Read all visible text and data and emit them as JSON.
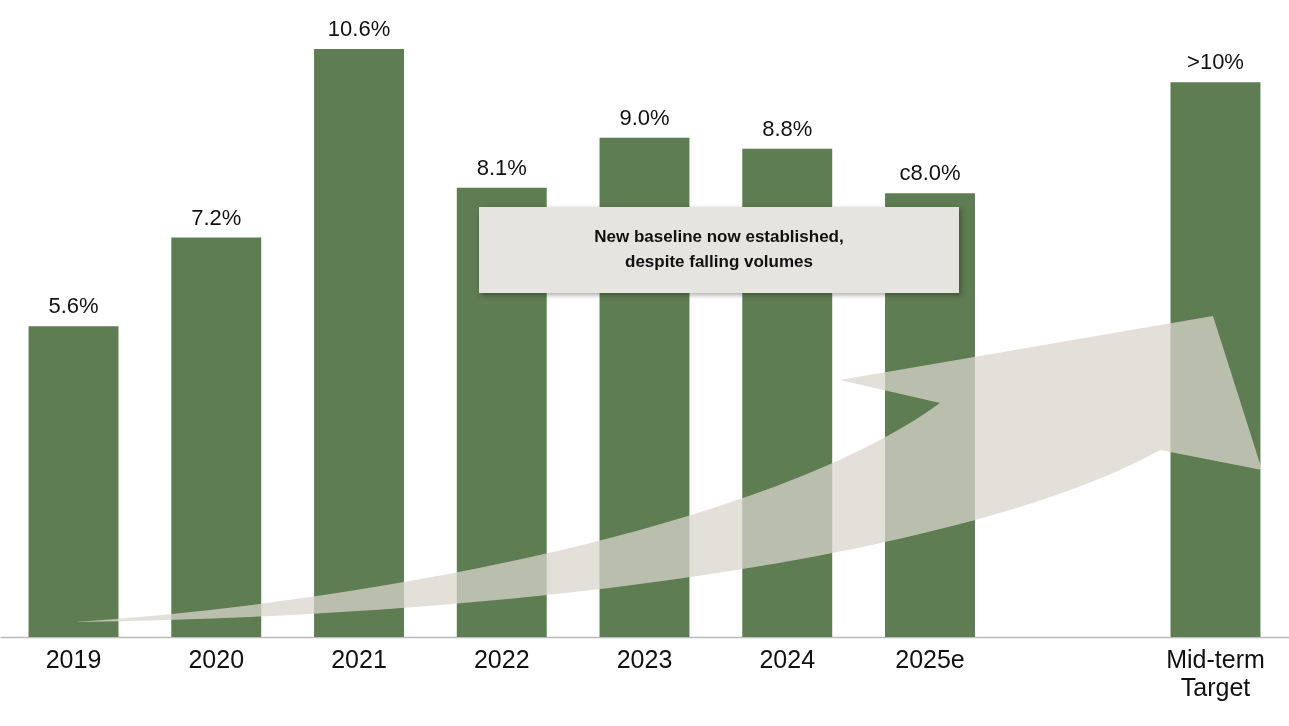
{
  "chart_data": {
    "type": "bar",
    "categories": [
      "2019",
      "2020",
      "2021",
      "2022",
      "2023",
      "2024",
      "2025e",
      null,
      "Mid-term Target"
    ],
    "values": [
      5.6,
      7.2,
      10.6,
      8.1,
      9.0,
      8.8,
      8.0,
      null,
      10
    ],
    "value_labels": [
      "5.6%",
      "7.2%",
      "10.6%",
      "8.1%",
      "9.0%",
      "8.8%",
      "c8.0%",
      null,
      ">10%"
    ],
    "color": "#5e7d52",
    "annotations": [
      "New baseline now established, despite falling volumes"
    ],
    "grid": false
  }
}
